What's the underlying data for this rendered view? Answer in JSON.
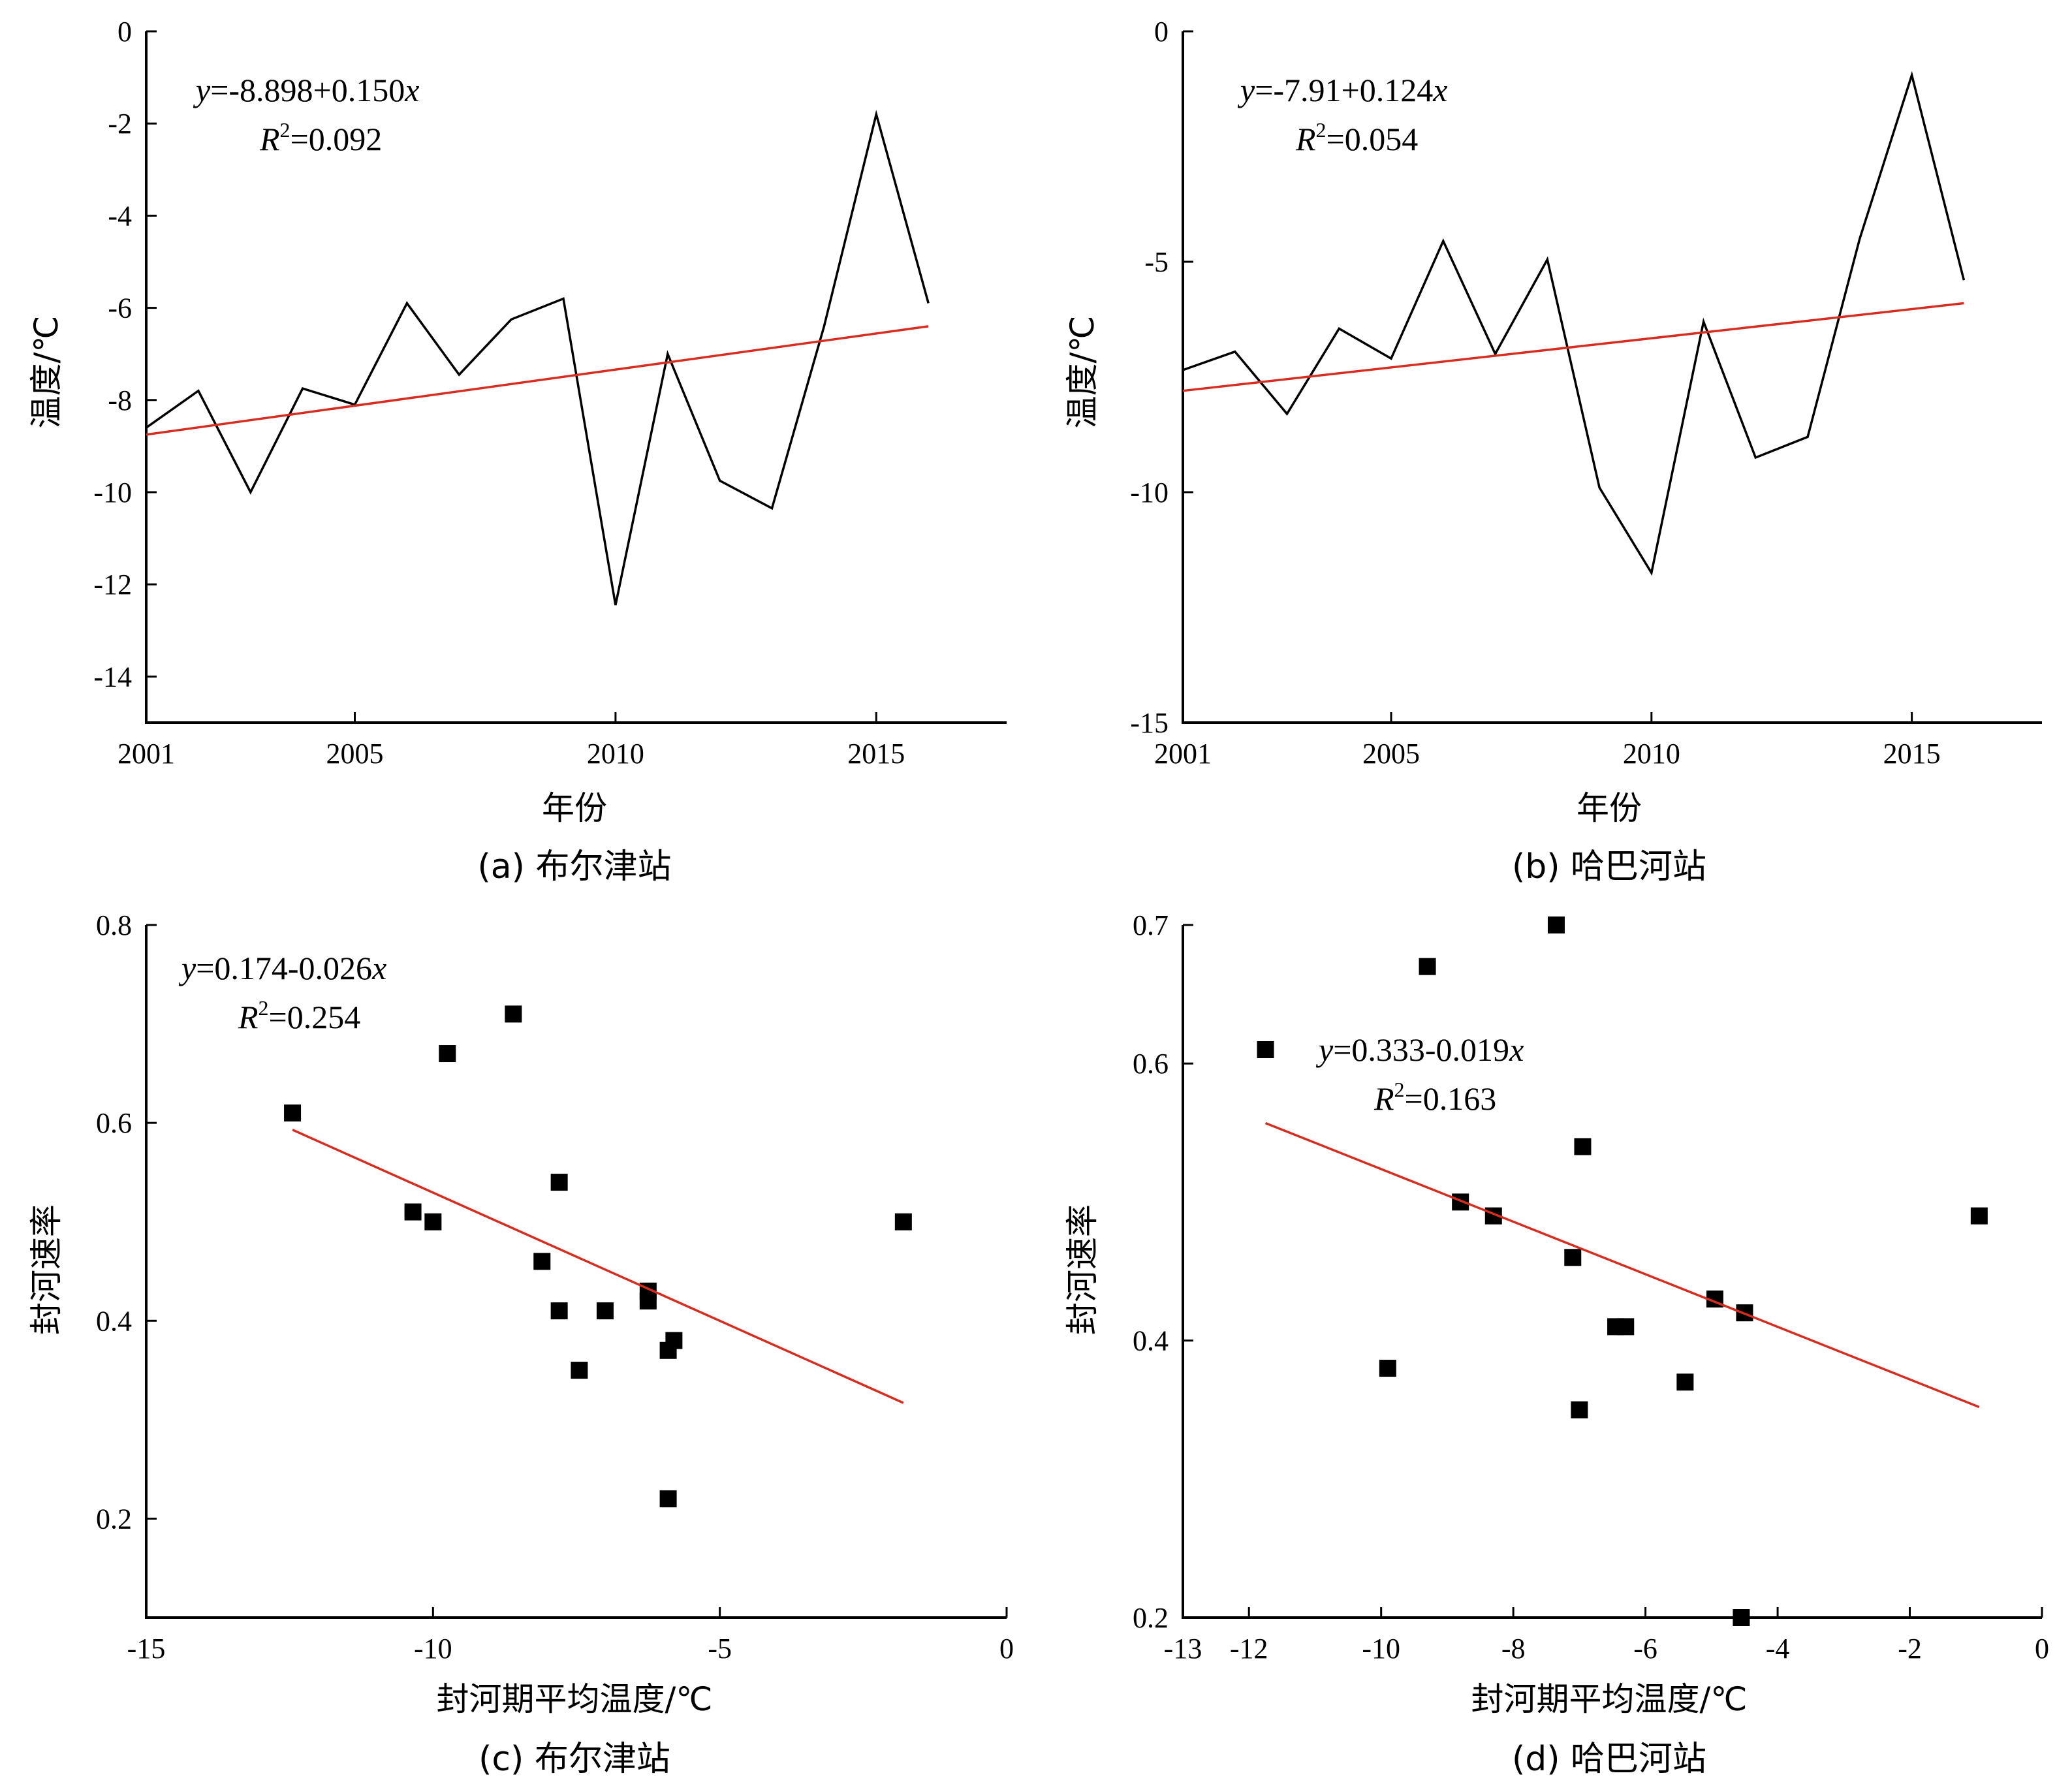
{
  "chart_data": [
    {
      "type": "line",
      "caption": "(a) 布尔津站",
      "xlabel": "年份",
      "ylabel": "温度/℃",
      "xlim": [
        2001,
        2017.5
      ],
      "ylim": [
        -15,
        0
      ],
      "xticks": [
        2001,
        2005,
        2010,
        2015
      ],
      "yticks": [
        0,
        -2,
        -4,
        -6,
        -8,
        -10,
        -12,
        -14
      ],
      "grid": false,
      "equation": {
        "y": "y",
        "rhs": "=-8.898+0.150",
        "x": "x",
        "r": "R",
        "sup": "2",
        "r2": "=0.092"
      },
      "series": [
        {
          "role": "observed",
          "color": "#000000",
          "x": [
            2001,
            2002,
            2003,
            2004,
            2005,
            2006,
            2007,
            2008,
            2009,
            2010,
            2011,
            2012,
            2013,
            2014,
            2015,
            2016
          ],
          "y": [
            -8.6,
            -7.8,
            -10.0,
            -7.75,
            -8.1,
            -5.9,
            -7.45,
            -6.25,
            -5.8,
            -12.45,
            -7.0,
            -9.75,
            -10.35,
            -6.4,
            -1.8,
            -5.9
          ]
        },
        {
          "role": "trend",
          "color": "#d62d20",
          "x": [
            2001,
            2016
          ],
          "y": [
            -8.75,
            -6.4
          ]
        }
      ]
    },
    {
      "type": "line",
      "caption": "(b) 哈巴河站",
      "xlabel": "年份",
      "ylabel": "温度/℃",
      "xlim": [
        2001,
        2017.5
      ],
      "ylim": [
        -15,
        0
      ],
      "xticks": [
        2001,
        2005,
        2010,
        2015
      ],
      "yticks": [
        0,
        -5,
        -10,
        -15
      ],
      "grid": false,
      "equation": {
        "y": "y",
        "rhs": "=-7.91+0.124",
        "x": "x",
        "r": "R",
        "sup": "2",
        "r2": "=0.054"
      },
      "series": [
        {
          "role": "observed",
          "color": "#000000",
          "x": [
            2001,
            2002,
            2003,
            2004,
            2005,
            2006,
            2007,
            2008,
            2009,
            2010,
            2011,
            2012,
            2013,
            2014,
            2015,
            2016
          ],
          "y": [
            -7.35,
            -6.95,
            -8.3,
            -6.45,
            -7.1,
            -4.55,
            -7.0,
            -4.95,
            -9.9,
            -11.75,
            -6.3,
            -9.25,
            -8.8,
            -4.5,
            -0.95,
            -5.4
          ]
        },
        {
          "role": "trend",
          "color": "#d62d20",
          "x": [
            2001,
            2016
          ],
          "y": [
            -7.8,
            -5.9
          ]
        }
      ]
    },
    {
      "type": "scatter",
      "caption": "(c) 布尔津站",
      "xlabel": "封河期平均温度/℃",
      "ylabel": "封河速率",
      "xlim": [
        -15,
        0
      ],
      "ylim": [
        0.1,
        0.8
      ],
      "xticks": [
        -15,
        -10,
        -5,
        0
      ],
      "yticks": [
        0.8,
        0.6,
        0.4,
        0.2
      ],
      "grid": false,
      "equation": {
        "y": "y",
        "rhs": "=0.174-0.026",
        "x": "x",
        "r": "R",
        "sup": "2",
        "r2": "=0.254"
      },
      "series": [
        {
          "role": "observed",
          "color": "#000000",
          "x": [
            -12.45,
            -10.35,
            -10.0,
            -9.75,
            -8.6,
            -8.1,
            -7.8,
            -7.8,
            -7.45,
            -7.0,
            -6.25,
            -6.25,
            -5.9,
            -5.9,
            -5.8,
            -1.8
          ],
          "y": [
            0.61,
            0.51,
            0.5,
            0.67,
            0.71,
            0.46,
            0.54,
            0.41,
            0.35,
            0.41,
            0.43,
            0.42,
            0.37,
            0.22,
            0.38,
            0.5
          ]
        },
        {
          "role": "trend",
          "color": "#d62d20",
          "x": [
            -12.45,
            -1.8
          ],
          "y": [
            0.593,
            0.317
          ]
        }
      ]
    },
    {
      "type": "scatter",
      "caption": "(d) 哈巴河站",
      "xlabel": "封河期平均温度/℃",
      "ylabel": "封河速率",
      "xlim": [
        -13,
        0
      ],
      "ylim": [
        0.2,
        0.7
      ],
      "xticks": [
        -13,
        -12,
        -10,
        -8,
        -6,
        -4,
        -2,
        0
      ],
      "yticks": [
        0.7,
        0.6,
        0.4,
        0.2
      ],
      "grid": false,
      "equation": {
        "y": "y",
        "rhs": "=0.333-0.019",
        "x": "x",
        "r": "R",
        "sup": "2",
        "r2": "=0.163"
      },
      "series": [
        {
          "role": "observed",
          "color": "#000000",
          "x": [
            -11.75,
            -9.9,
            -9.3,
            -8.8,
            -8.3,
            -7.35,
            -7.1,
            -7.0,
            -6.95,
            -6.45,
            -6.3,
            -5.4,
            -4.95,
            -4.55,
            -4.5,
            -0.95
          ],
          "y": [
            0.61,
            0.38,
            0.67,
            0.5,
            0.49,
            0.7,
            0.46,
            0.35,
            0.54,
            0.41,
            0.41,
            0.37,
            0.43,
            0.2,
            0.42,
            0.49
          ]
        },
        {
          "role": "trend",
          "color": "#d62d20",
          "x": [
            -11.75,
            -0.95
          ],
          "y": [
            0.557,
            0.352
          ]
        }
      ]
    }
  ]
}
